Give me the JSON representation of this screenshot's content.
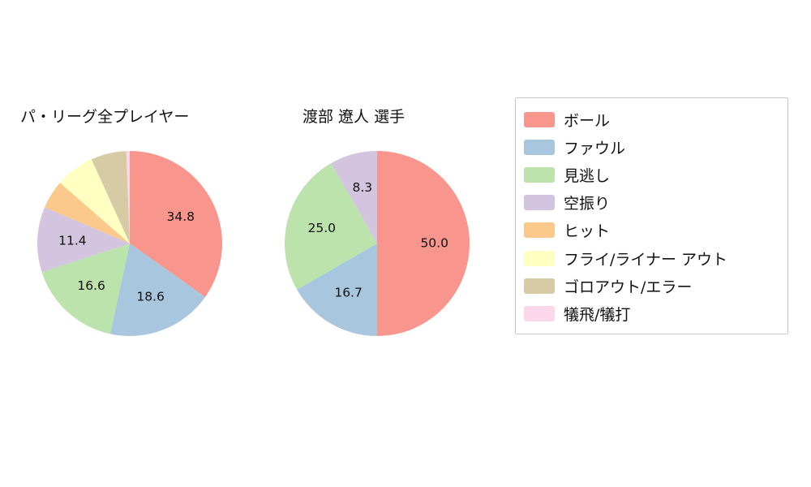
{
  "chart_data": [
    {
      "type": "pie",
      "title": "パ・リーグ全プレイヤー",
      "labels": [
        "ボール",
        "ファウル",
        "見逃し",
        "空振り",
        "ヒット",
        "フライ/ライナー アウト",
        "ゴロアウト/エラー",
        "犠飛/犠打"
      ],
      "values": [
        34.8,
        18.6,
        16.6,
        11.4,
        5.0,
        6.8,
        6.2,
        0.6
      ],
      "value_labels": [
        "34.8",
        "18.6",
        "16.6",
        "11.4",
        "",
        "",
        "",
        ""
      ],
      "colors": [
        "#f8968e",
        "#a8c6dd",
        "#bbe3ab",
        "#d3c4e0",
        "#fbc98b",
        "#ffffc2",
        "#d6cba5",
        "#fbd7ec"
      ],
      "start_angle": 90,
      "direction": "clockwise",
      "legend_position": "right"
    },
    {
      "type": "pie",
      "title": "渡部 遼人  選手",
      "labels": [
        "ボール",
        "ファウル",
        "見逃し",
        "空振り"
      ],
      "values": [
        50.0,
        16.7,
        25.0,
        8.3
      ],
      "value_labels": [
        "50.0",
        "16.7",
        "25.0",
        "8.3"
      ],
      "colors": [
        "#f8968e",
        "#a8c6dd",
        "#bbe3ab",
        "#d3c4e0"
      ],
      "start_angle": 90,
      "direction": "clockwise",
      "legend_position": "right"
    }
  ],
  "legend": {
    "entries": [
      {
        "label": "ボール",
        "color": "#f8968e"
      },
      {
        "label": "ファウル",
        "color": "#a8c6dd"
      },
      {
        "label": "見逃し",
        "color": "#bbe3ab"
      },
      {
        "label": "空振り",
        "color": "#d3c4e0"
      },
      {
        "label": "ヒット",
        "color": "#fbc98b"
      },
      {
        "label": "フライ/ライナー アウト",
        "color": "#ffffc2"
      },
      {
        "label": "ゴロアウト/エラー",
        "color": "#d6cba5"
      },
      {
        "label": "犠飛/犠打",
        "color": "#fbd7ec"
      }
    ]
  }
}
